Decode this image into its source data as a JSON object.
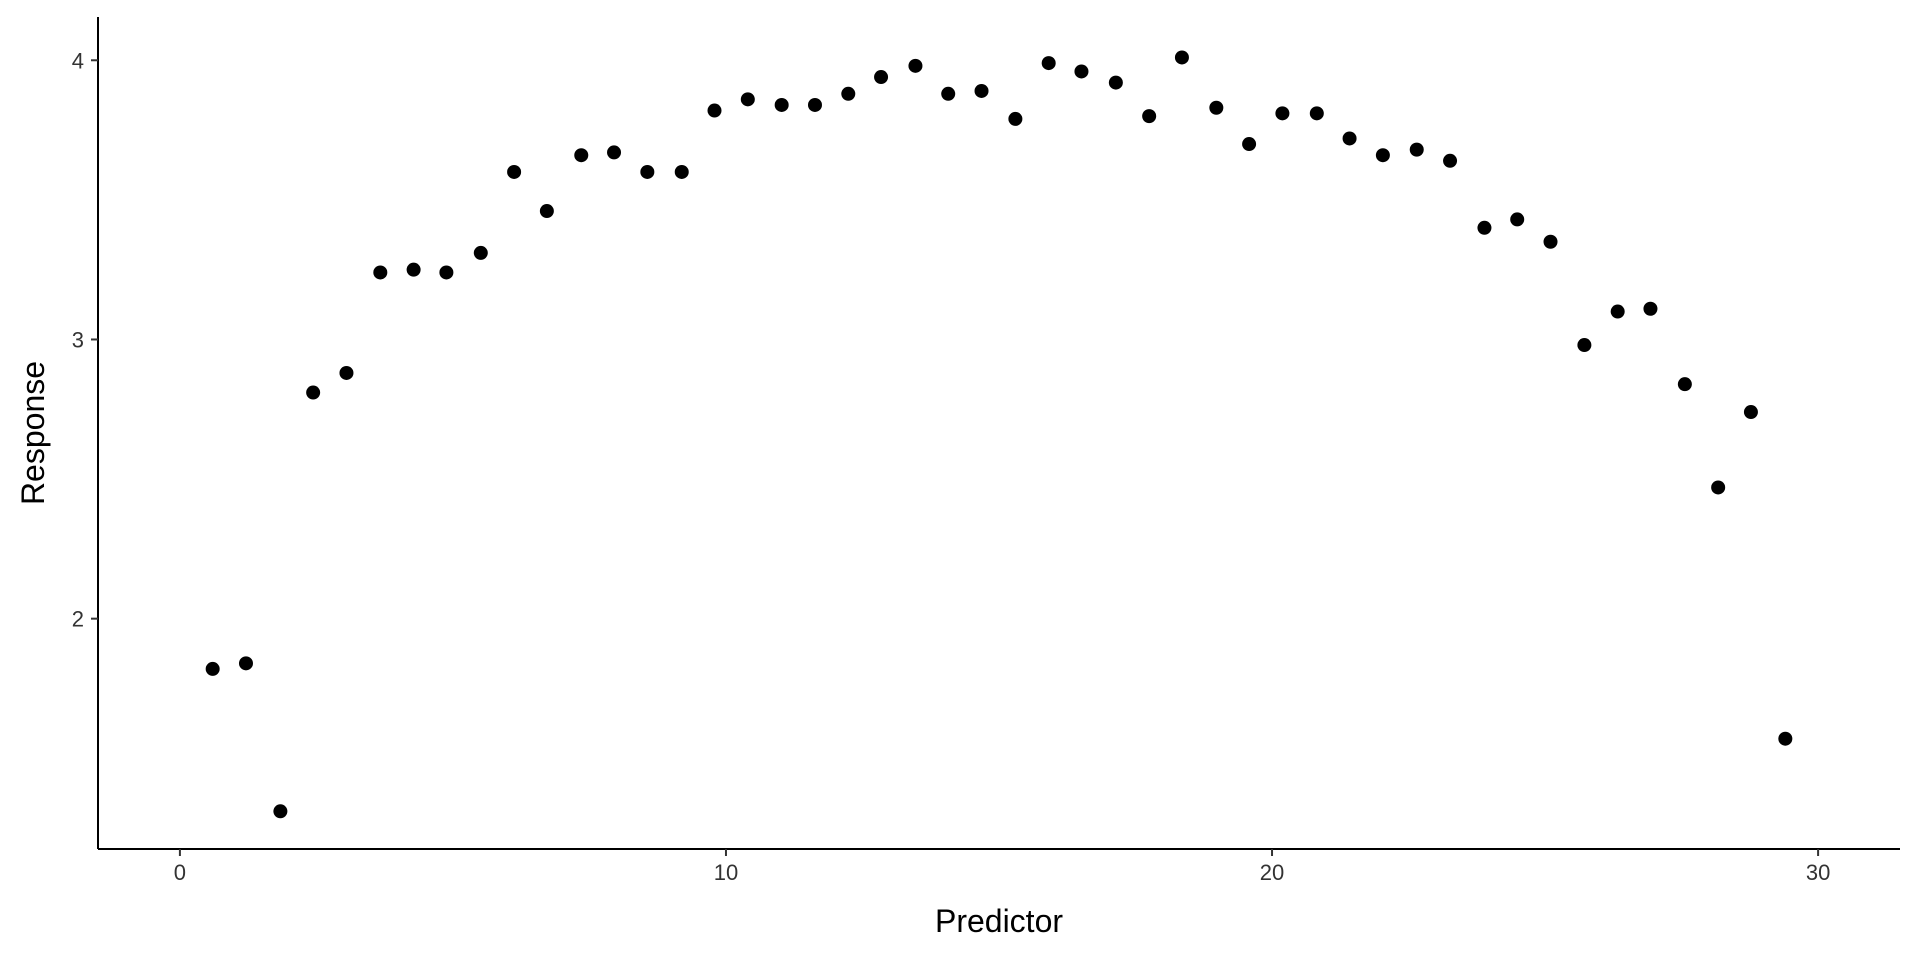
{
  "chart_data": {
    "type": "scatter",
    "x_label": "Predictor",
    "y_label": "Response",
    "color": "#000000",
    "x": [
      0.6,
      1.21,
      1.84,
      2.44,
      3.05,
      3.67,
      4.28,
      4.88,
      5.51,
      6.12,
      6.72,
      7.35,
      7.95,
      8.56,
      9.19,
      9.79,
      10.4,
      11.02,
      11.63,
      12.24,
      12.84,
      13.47,
      14.07,
      14.68,
      15.3,
      15.91,
      16.51,
      17.14,
      17.75,
      18.35,
      18.98,
      19.58,
      20.19,
      20.82,
      21.42,
      22.03,
      22.65,
      23.26,
      23.89,
      24.49,
      25.1,
      25.72,
      26.33,
      26.93,
      27.56,
      28.17,
      28.77,
      29.4
    ],
    "values": [
      1.82,
      1.84,
      1.31,
      2.81,
      2.88,
      3.24,
      3.25,
      3.24,
      3.31,
      3.6,
      3.46,
      3.66,
      3.67,
      3.6,
      3.6,
      3.82,
      3.86,
      3.84,
      3.84,
      3.88,
      3.94,
      3.98,
      3.88,
      3.89,
      3.79,
      3.99,
      3.96,
      3.92,
      3.8,
      4.01,
      3.83,
      3.7,
      3.81,
      3.81,
      3.72,
      3.66,
      3.68,
      3.64,
      3.4,
      3.43,
      3.35,
      2.98,
      3.1,
      3.11,
      2.84,
      2.47,
      2.74,
      1.57
    ],
    "xlim": [
      -1.5,
      31.5
    ],
    "ylim": [
      1.175,
      4.155
    ],
    "xticks": [
      0,
      10,
      20,
      30
    ],
    "yticks": [
      2,
      3,
      4
    ],
    "grid": false
  }
}
